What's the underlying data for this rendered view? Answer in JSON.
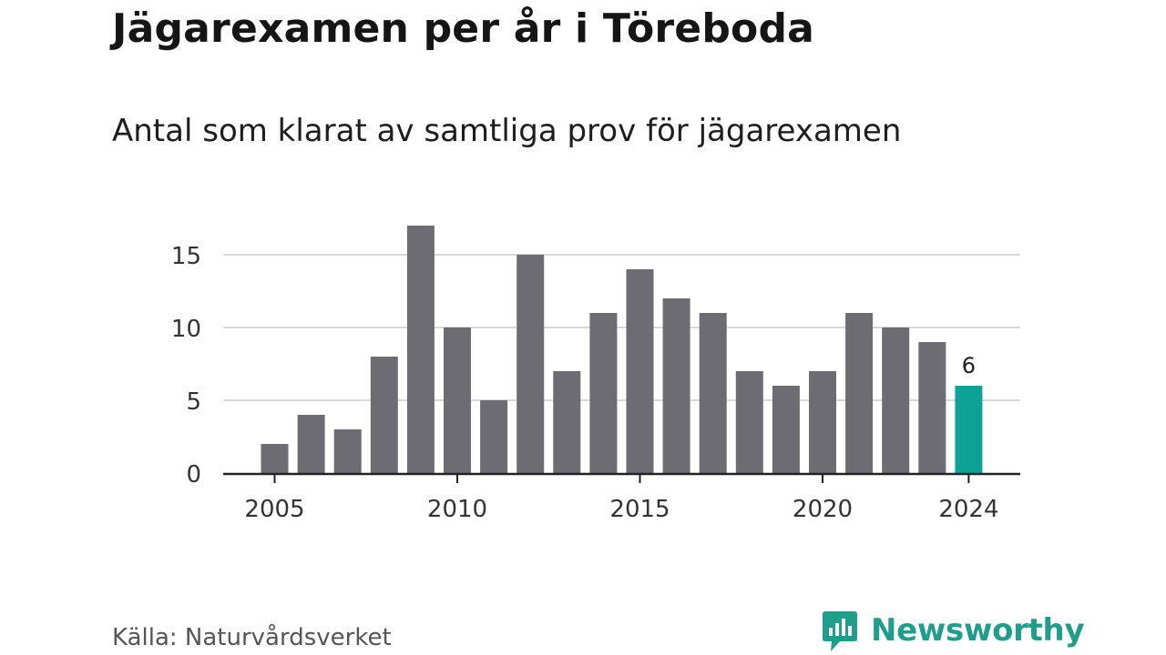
{
  "header": {
    "title": "Jägarexamen per år i Töreboda",
    "subtitle": "Antal som klarat av samtliga prov för jägarexamen"
  },
  "footer": {
    "source": "Källa: Naturvårdsverket",
    "brand": "Newsworthy",
    "brand_icon": "bar-chart-speech-bubble-icon"
  },
  "colors": {
    "bar": "#6d6c72",
    "highlight": "#0ea297",
    "grid": "#d9d9d9",
    "axis": "#222222",
    "brand": "#1f9e8c"
  },
  "chart_data": {
    "type": "bar",
    "title": "Jägarexamen per år i Töreboda",
    "subtitle": "Antal som klarat av samtliga prov för jägarexamen",
    "xlabel": "",
    "ylabel": "",
    "categories": [
      2005,
      2006,
      2007,
      2008,
      2009,
      2010,
      2011,
      2012,
      2013,
      2014,
      2015,
      2016,
      2017,
      2018,
      2019,
      2020,
      2021,
      2022,
      2023,
      2024
    ],
    "values": [
      2,
      4,
      3,
      8,
      17,
      10,
      5,
      15,
      7,
      11,
      14,
      12,
      11,
      7,
      6,
      7,
      11,
      10,
      9,
      6
    ],
    "highlight_category": 2024,
    "highlight_label": "6",
    "x_ticks": [
      "2005",
      "2010",
      "2015",
      "2020",
      "2024"
    ],
    "y_ticks": [
      0,
      5,
      10,
      15
    ],
    "ylim": [
      0,
      17
    ],
    "grid": true,
    "legend": "none"
  }
}
